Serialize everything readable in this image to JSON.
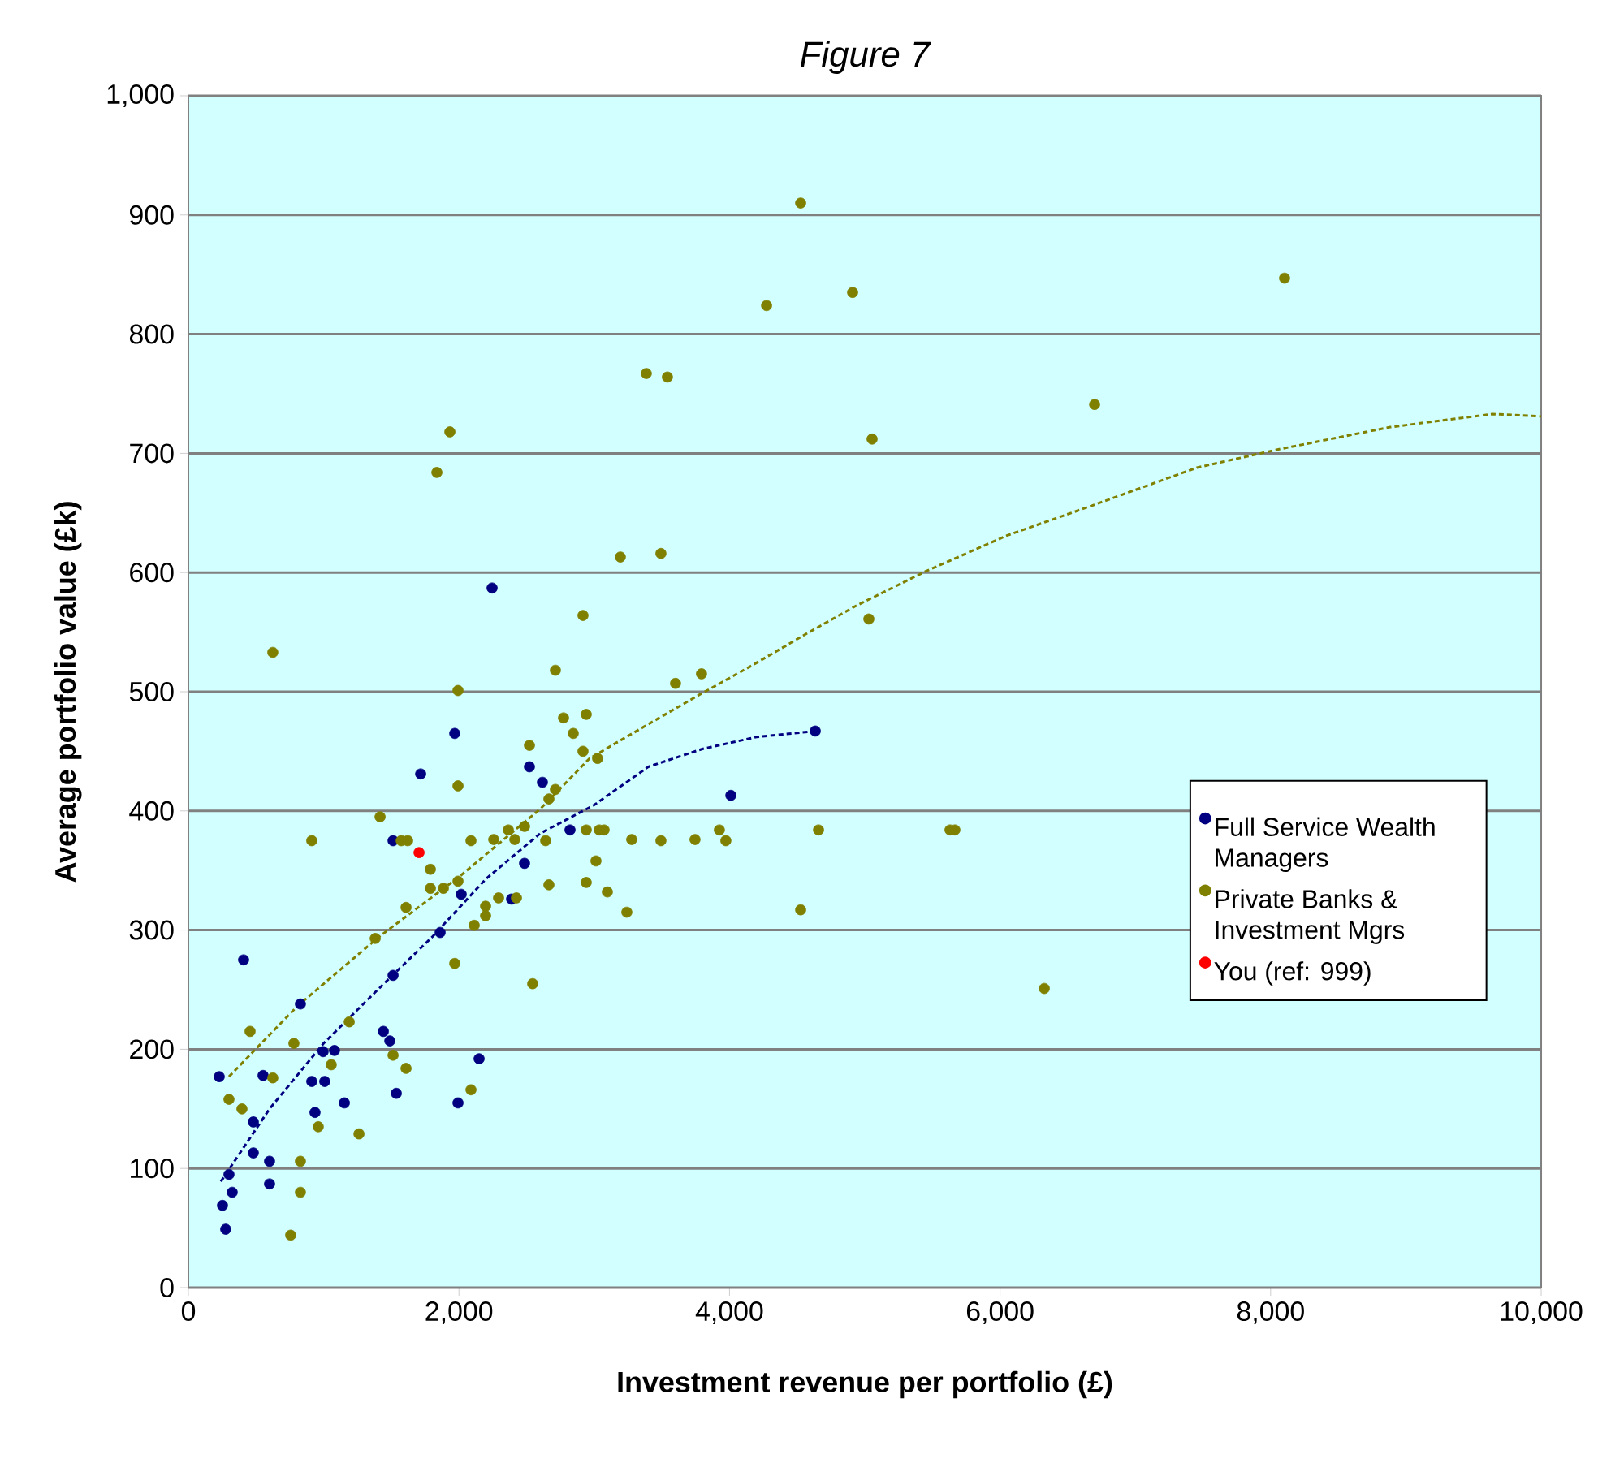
{
  "chart_data": {
    "type": "scatter",
    "title": "Figure 7",
    "xlabel": "Investment revenue per portfolio (£)",
    "ylabel": "Average portfolio value (£k)",
    "xlim": [
      0,
      10000
    ],
    "ylim": [
      0,
      1000
    ],
    "xticks": [
      0,
      {
        "value": 2000,
        "label": "2,000"
      },
      {
        "value": 4000,
        "label": "4,000"
      },
      {
        "value": 6000,
        "label": "6,000"
      },
      {
        "value": 8000,
        "label": "8,000"
      },
      {
        "value": 10000,
        "label": "10,000"
      }
    ],
    "yticks": [
      0,
      100,
      200,
      300,
      400,
      500,
      600,
      700,
      800,
      900,
      {
        "value": 1000,
        "label": "1,000"
      }
    ],
    "grid": "y",
    "legend": "right",
    "series": [
      {
        "name": "Full Service Wealth Managers",
        "marker": "circle",
        "color": "#000080",
        "x": [
          1969,
          1717,
          2521,
          2617,
          1513,
          2485,
          2017,
          2389,
          1861,
          408,
          1513,
          828,
          1441,
          1489,
          2149,
          228,
          552,
          912,
          1008,
          996,
          1080,
          1537,
          1153,
          1993,
          936,
          480,
          480,
          600,
          600,
          300,
          324,
          252,
          276,
          2821,
          4010,
          4634,
          2245
        ],
        "values": [
          465,
          431,
          437,
          424,
          375,
          356,
          330,
          326,
          298,
          275,
          262,
          238,
          215,
          207,
          192,
          177,
          178,
          173,
          173,
          198,
          199,
          163,
          155,
          155,
          147,
          139,
          113,
          106,
          87,
          95,
          80,
          69,
          49,
          384,
          413,
          467,
          587
        ]
      },
      {
        "name": "Private Banks & Investment Mgrs",
        "marker": "circle",
        "color": "#808000",
        "x": [
          624,
          1993,
          2521,
          1993,
          1417,
          912,
          1573,
          1621,
          2089,
          2257,
          2365,
          2413,
          2485,
          1789,
          1789,
          1885,
          1993,
          1609,
          2293,
          2425,
          2197,
          2197,
          2113,
          1381,
          1969,
          2545,
          1189,
          456,
          780,
          1056,
          1513,
          1609,
          624,
          2089,
          300,
          396,
          960,
          1261,
          828,
          828,
          756,
          3193,
          3493,
          2917,
          2713,
          3601,
          3793,
          2773,
          2941,
          2845,
          2917,
          3025,
          2713,
          2665,
          2641,
          2941,
          3037,
          3073,
          3277,
          3493,
          3745,
          3925,
          3973,
          4658,
          3013,
          2665,
          2941,
          3097,
          3241,
          4526,
          5030,
          5630,
          5666,
          6327,
          1933,
          1837,
          4526,
          4274,
          4910,
          8103,
          3541,
          3385,
          6699,
          5054
        ],
        "values": [
          533,
          501,
          455,
          421,
          395,
          375,
          375,
          375,
          375,
          376,
          384,
          376,
          387,
          351,
          335,
          335,
          341,
          319,
          327,
          327,
          320,
          312,
          304,
          293,
          272,
          255,
          223,
          215,
          205,
          187,
          195,
          184,
          176,
          166,
          158,
          150,
          135,
          129,
          106,
          80,
          44,
          613,
          616,
          564,
          518,
          507,
          515,
          478,
          481,
          465,
          450,
          444,
          418,
          410,
          375,
          384,
          384,
          384,
          376,
          375,
          376,
          384,
          375,
          384,
          358,
          338,
          340,
          332,
          315,
          317,
          561,
          384,
          384,
          251,
          718,
          684,
          910,
          824,
          835,
          847,
          764,
          767,
          741,
          712
        ]
      },
      {
        "name": "You (ref: 999)",
        "marker": "circle",
        "color": "#ff0000",
        "x": [
          1705
        ],
        "values": [
          365
        ]
      },
      {
        "type": "line",
        "line_style": "dashed",
        "marker": "none",
        "color": "#000080",
        "x": [
          240,
          600,
          1000,
          1400,
          1800,
          2200,
          2600,
          3000,
          3400,
          3800,
          4200,
          4634
        ],
        "values": [
          89,
          150,
          205,
          250,
          294,
          343,
          381,
          405,
          437,
          452,
          462,
          467
        ]
      },
      {
        "type": "line",
        "line_style": "dashed",
        "marker": "none",
        "color": "#808000",
        "x": [
          300,
          804,
          1405,
          2005,
          2605,
          2965,
          3373,
          3770,
          4166,
          4574,
          4934,
          5450,
          6050,
          6651,
          7455,
          8043,
          8884,
          9640,
          10000
        ],
        "values": [
          177,
          236,
          294,
          345,
          402,
          444,
          471,
          497,
          522,
          549,
          572,
          601,
          631,
          655,
          688,
          703,
          722,
          733,
          731
        ]
      }
    ]
  }
}
